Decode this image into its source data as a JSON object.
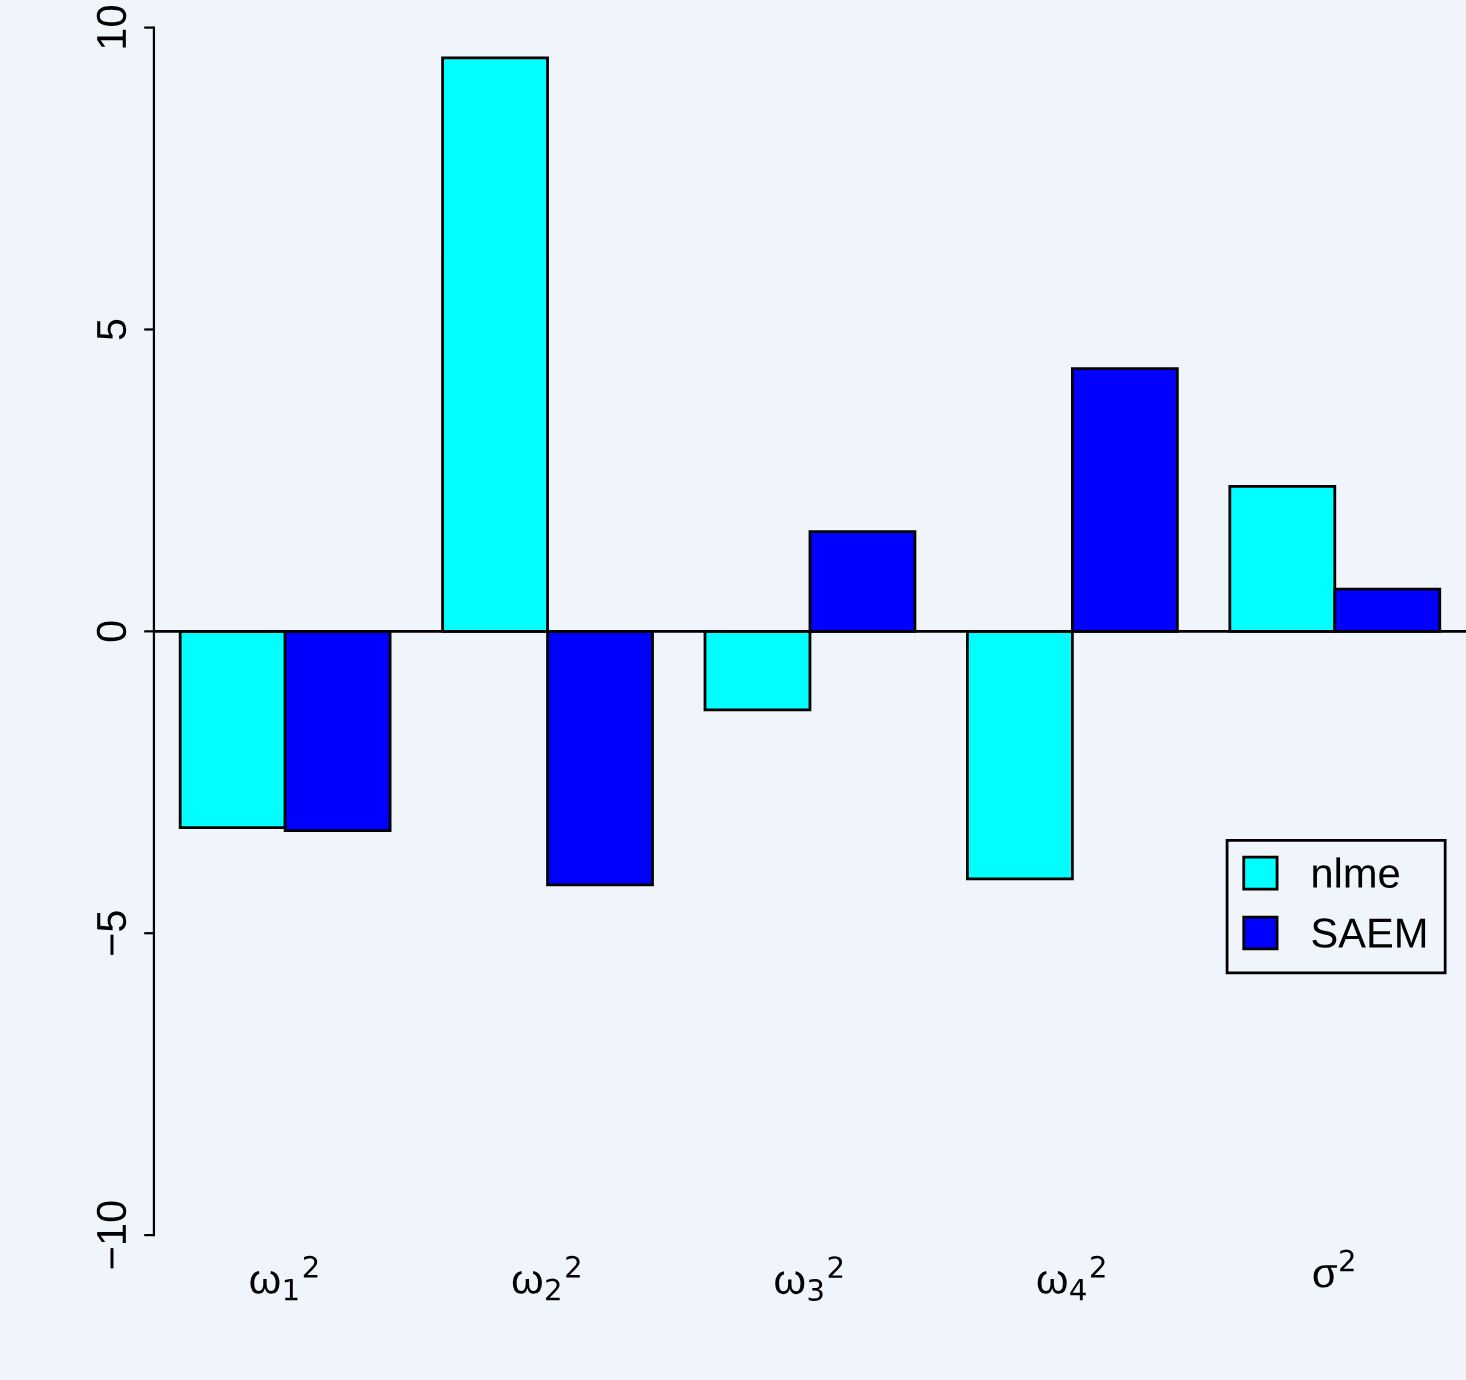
{
  "chart_data": {
    "type": "bar",
    "categories": [
      "ω$_{1}$$^{2}$",
      "ω$_{2}$$^{2}$",
      "ω$_{3}$$^{2}$",
      "ω$_{4}$$^{2}$",
      "σ$^{2}$"
    ],
    "series": [
      {
        "name": "nlme",
        "color": "#00ffff",
        "values": [
          -3.25,
          9.5,
          -1.3,
          -4.1,
          2.4
        ]
      },
      {
        "name": "SAEM",
        "color": "#0000ff",
        "values": [
          -3.3,
          -4.2,
          1.65,
          4.35,
          0.7
        ]
      }
    ],
    "ylim": [
      -10,
      10
    ],
    "yticks": [
      -10,
      -5,
      0,
      5,
      10
    ],
    "grid": false,
    "legend": "bottom right",
    "ref_lines": [
      {
        "axis": "y",
        "value": 0,
        "color": "#000000"
      }
    ]
  }
}
